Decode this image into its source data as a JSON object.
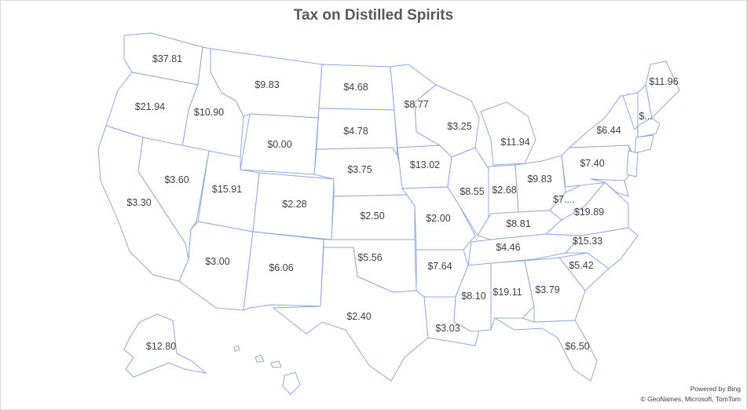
{
  "title": "Tax on Distilled Spirits",
  "credit_line1": "Powered by Bing",
  "credit_line2": "© GeoNames, Microsoft, TomTom",
  "colors": {
    "border": "#8fa9da",
    "label": "#404040",
    "title": "#595959"
  },
  "chart_data": {
    "type": "map",
    "title": "Tax on Distilled Spirits",
    "value_format": "currency",
    "states": [
      {
        "state": "Washington",
        "value": 37.81,
        "label": "$37.81"
      },
      {
        "state": "Oregon",
        "value": 21.94,
        "label": "$21.94"
      },
      {
        "state": "California",
        "value": 3.3,
        "label": "$3.30"
      },
      {
        "state": "Nevada",
        "value": 3.6,
        "label": "$3.60"
      },
      {
        "state": "Idaho",
        "value": 10.9,
        "label": "$10.90"
      },
      {
        "state": "Montana",
        "value": 9.83,
        "label": "$9.83"
      },
      {
        "state": "Wyoming",
        "value": 0.0,
        "label": "$0.00"
      },
      {
        "state": "Utah",
        "value": 15.91,
        "label": "$15.91"
      },
      {
        "state": "Arizona",
        "value": 3.0,
        "label": "$3.00"
      },
      {
        "state": "Colorado",
        "value": 2.28,
        "label": "$2.28"
      },
      {
        "state": "New Mexico",
        "value": 6.06,
        "label": "$6.06"
      },
      {
        "state": "North Dakota",
        "value": 4.68,
        "label": "$4.68"
      },
      {
        "state": "South Dakota",
        "value": 4.78,
        "label": "$4.78"
      },
      {
        "state": "Nebraska",
        "value": 3.75,
        "label": "$3.75"
      },
      {
        "state": "Kansas",
        "value": 2.5,
        "label": "$2.50"
      },
      {
        "state": "Oklahoma",
        "value": 5.56,
        "label": "$5.56"
      },
      {
        "state": "Texas",
        "value": 2.4,
        "label": "$2.40"
      },
      {
        "state": "Minnesota",
        "value": 8.77,
        "label": "$8.77"
      },
      {
        "state": "Iowa",
        "value": 13.02,
        "label": "$13.02"
      },
      {
        "state": "Missouri",
        "value": 2.0,
        "label": "$2.00"
      },
      {
        "state": "Arkansas",
        "value": 7.64,
        "label": "$7.64"
      },
      {
        "state": "Louisiana",
        "value": 3.03,
        "label": "$3.03"
      },
      {
        "state": "Wisconsin",
        "value": 3.25,
        "label": "$3.25"
      },
      {
        "state": "Illinois",
        "value": 8.55,
        "label": "$8.55"
      },
      {
        "state": "Michigan",
        "value": 11.94,
        "label": "$11.94"
      },
      {
        "state": "Indiana",
        "value": 2.68,
        "label": "$2.68"
      },
      {
        "state": "Ohio",
        "value": 9.83,
        "label": "$9.83"
      },
      {
        "state": "Kentucky",
        "value": 8.81,
        "label": "$8.81"
      },
      {
        "state": "Tennessee",
        "value": 4.46,
        "label": "$4.46"
      },
      {
        "state": "Mississippi",
        "value": 8.1,
        "label": "$8.10"
      },
      {
        "state": "Alabama",
        "value": 19.11,
        "label": "$19.11"
      },
      {
        "state": "Georgia",
        "value": 3.79,
        "label": "$3.79"
      },
      {
        "state": "Florida",
        "value": 6.5,
        "label": "$6.50"
      },
      {
        "state": "South Carolina",
        "value": 5.42,
        "label": "$5.42"
      },
      {
        "state": "North Carolina",
        "value": 15.33,
        "label": "$15.33"
      },
      {
        "state": "Virginia",
        "value": 19.89,
        "label": "$19.89"
      },
      {
        "state": "West Virginia",
        "value": null,
        "label": "$7...."
      },
      {
        "state": "Pennsylvania",
        "value": 7.4,
        "label": "$7.40"
      },
      {
        "state": "New York",
        "value": 6.44,
        "label": "$6.44"
      },
      {
        "state": "New Hampshire",
        "value": null,
        "label": "$..."
      },
      {
        "state": "Maine",
        "value": 11.96,
        "label": "$11.96"
      },
      {
        "state": "Alaska",
        "value": 12.8,
        "label": "$12.80"
      }
    ]
  }
}
